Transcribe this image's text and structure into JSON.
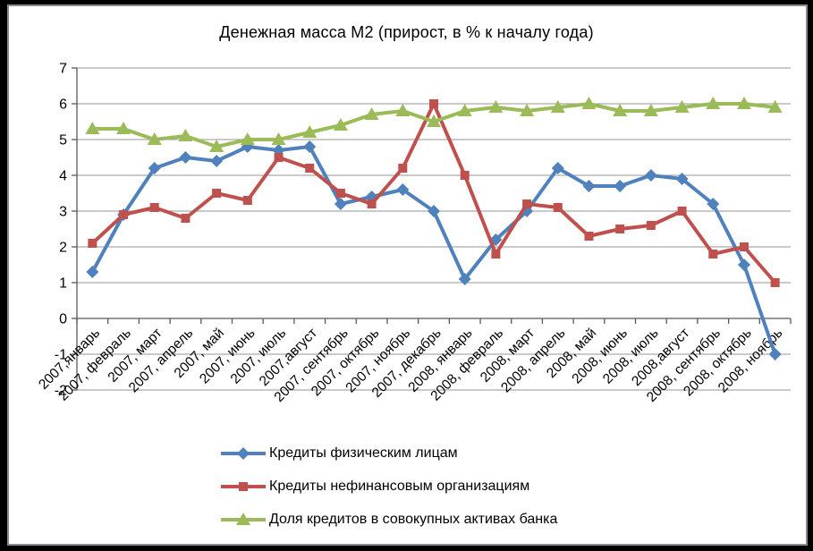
{
  "frame": {
    "outer_bg": "#000000",
    "border_color": "#8c8c8c",
    "inner_bg": "#ffffff"
  },
  "chart_data": {
    "type": "line",
    "title": "Денежная масса М2 (прирост, в % к началу года)",
    "categories": [
      "2007,январь",
      "2007, февраль",
      "2007, март",
      "2007, апрель",
      "2007, май",
      "2007, июнь",
      "2007, июль",
      "2007,август",
      "2007, сентябрь",
      "2007, октябрь",
      "2007, ноябрь",
      "2007, декабрь",
      "2008, январь",
      "2008, февраль",
      "2008, март",
      "2008, апрель",
      "2008, май",
      "2008, июнь",
      "2008, июль",
      "2008,август",
      "2008, сентябрь",
      "2008, октябрь",
      "2008, ноябрь"
    ],
    "series": [
      {
        "name": "Кредиты физическим лицам",
        "color": "#4f81bd",
        "marker": "diamond",
        "values": [
          1.3,
          2.9,
          4.2,
          4.5,
          4.4,
          4.8,
          4.7,
          4.8,
          3.2,
          3.4,
          3.6,
          3.0,
          1.1,
          2.2,
          3.0,
          4.2,
          3.7,
          3.7,
          4.0,
          3.9,
          3.2,
          1.5,
          -1.0
        ]
      },
      {
        "name": "Кредиты нефинансовым организациям",
        "color": "#c0504d",
        "marker": "square",
        "values": [
          2.1,
          2.9,
          3.1,
          2.8,
          3.5,
          3.3,
          4.5,
          4.2,
          3.5,
          3.2,
          4.2,
          6.0,
          4.0,
          1.8,
          3.2,
          3.1,
          2.3,
          2.5,
          2.6,
          3.0,
          1.8,
          2.0,
          1.0
        ]
      },
      {
        "name": "Доля кредитов в совокупных активах банка",
        "color": "#9bbb59",
        "marker": "triangle",
        "values": [
          5.3,
          5.3,
          5.0,
          5.1,
          4.8,
          5.0,
          5.0,
          5.2,
          5.4,
          5.7,
          5.8,
          5.5,
          5.8,
          5.9,
          5.8,
          5.9,
          6.0,
          5.8,
          5.8,
          5.9,
          6.0,
          6.0,
          5.9
        ]
      }
    ],
    "ylim": [
      -2,
      7
    ],
    "y_ticks": [
      7,
      6,
      5,
      4,
      3,
      2,
      1,
      0,
      -1,
      -2
    ],
    "grid": true,
    "legend_position": "bottom",
    "gridline_color": "#969696",
    "axis_color": "#595959",
    "text_color": "#000000"
  }
}
